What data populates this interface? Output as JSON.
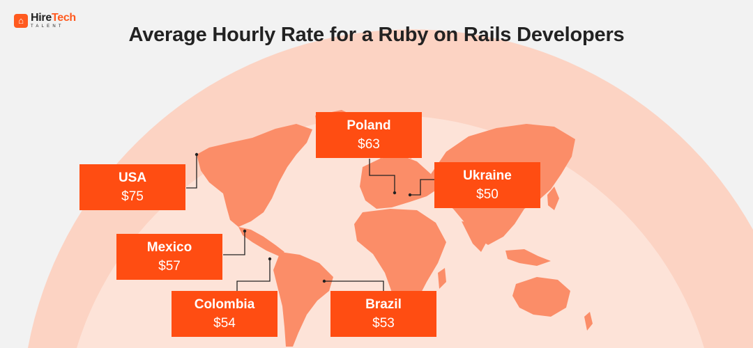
{
  "logo": {
    "brand": "Hire",
    "tech": "Tech",
    "subtitle": "TALENT",
    "icon": "person-badge-icon"
  },
  "title": "Average Hourly Rate for a Ruby on Rails Developers",
  "colors": {
    "background": "#f2f2f2",
    "accent": "#ff4d12",
    "globe_outer": "#fcd3c3",
    "globe_inner": "#fde3d8",
    "continents": "#fb8d68"
  },
  "rates": [
    {
      "id": "usa",
      "country": "USA",
      "rate": "$75"
    },
    {
      "id": "poland",
      "country": "Poland",
      "rate": "$63"
    },
    {
      "id": "ukraine",
      "country": "Ukraine",
      "rate": "$50"
    },
    {
      "id": "mexico",
      "country": "Mexico",
      "rate": "$57"
    },
    {
      "id": "colombia",
      "country": "Colombia",
      "rate": "$54"
    },
    {
      "id": "brazil",
      "country": "Brazil",
      "rate": "$53"
    }
  ]
}
